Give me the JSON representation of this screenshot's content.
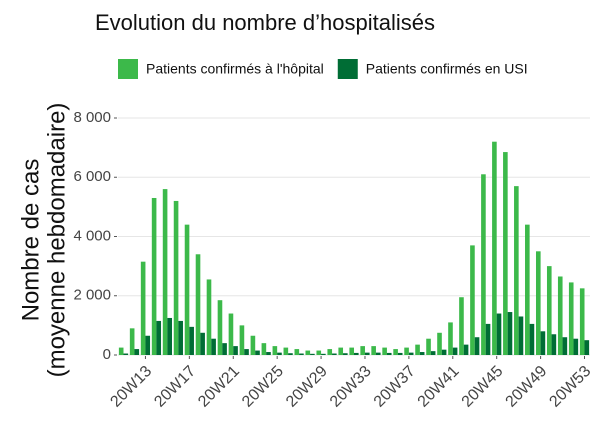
{
  "chart_data": {
    "type": "bar",
    "title": "Evolution du nombre d’hospitalisés",
    "ylabel": [
      "Nombre de cas",
      "(moyenne hebdomadaire)"
    ],
    "categories": [
      null,
      null,
      "20W13",
      null,
      null,
      null,
      "20W17",
      null,
      null,
      null,
      "20W21",
      null,
      null,
      null,
      "20W25",
      null,
      null,
      null,
      "20W29",
      null,
      null,
      null,
      "20W33",
      null,
      null,
      null,
      "20W37",
      null,
      null,
      null,
      "20W41",
      null,
      null,
      null,
      "20W45",
      null,
      null,
      null,
      "20W49",
      null,
      null,
      null,
      "20W53"
    ],
    "series": [
      {
        "name": "Patients confirmés à l'hôpital",
        "color": "#3cb94a",
        "values": [
          250,
          900,
          3150,
          5300,
          5600,
          5200,
          4400,
          3400,
          2550,
          1850,
          1400,
          1000,
          650,
          400,
          300,
          250,
          200,
          150,
          150,
          200,
          250,
          250,
          300,
          300,
          250,
          200,
          250,
          350,
          550,
          750,
          1100,
          1950,
          3700,
          6100,
          7200,
          6850,
          5700,
          4400,
          3500,
          3000,
          2650,
          2450,
          2250
        ]
      },
      {
        "name": "Patients confirmés en USI",
        "color": "#006d35",
        "values": [
          50,
          200,
          650,
          1150,
          1250,
          1150,
          950,
          750,
          550,
          400,
          300,
          200,
          150,
          100,
          80,
          60,
          50,
          40,
          40,
          50,
          60,
          70,
          80,
          80,
          70,
          70,
          80,
          100,
          130,
          180,
          250,
          350,
          600,
          1050,
          1400,
          1450,
          1300,
          1050,
          800,
          700,
          600,
          550,
          500
        ]
      }
    ],
    "ylim": [
      0,
      8000
    ],
    "yticks": [
      {
        "value": 0,
        "label": "0"
      },
      {
        "value": 2000,
        "label": "2 000"
      },
      {
        "value": 4000,
        "label": "4 000"
      },
      {
        "value": 6000,
        "label": "6 000"
      },
      {
        "value": 8000,
        "label": "8 000"
      }
    ],
    "grid": true,
    "legend": "top"
  }
}
